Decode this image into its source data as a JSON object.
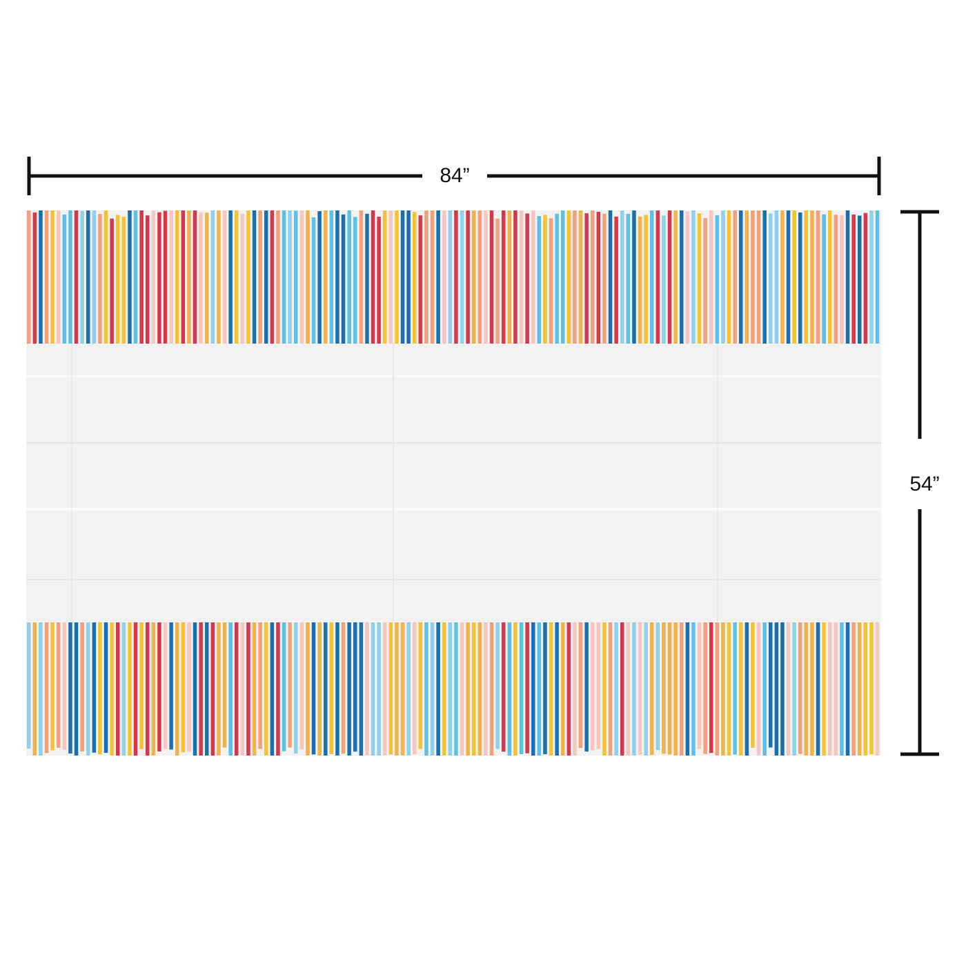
{
  "dimensions": {
    "width_label": "84”",
    "height_label": "54”"
  }
}
